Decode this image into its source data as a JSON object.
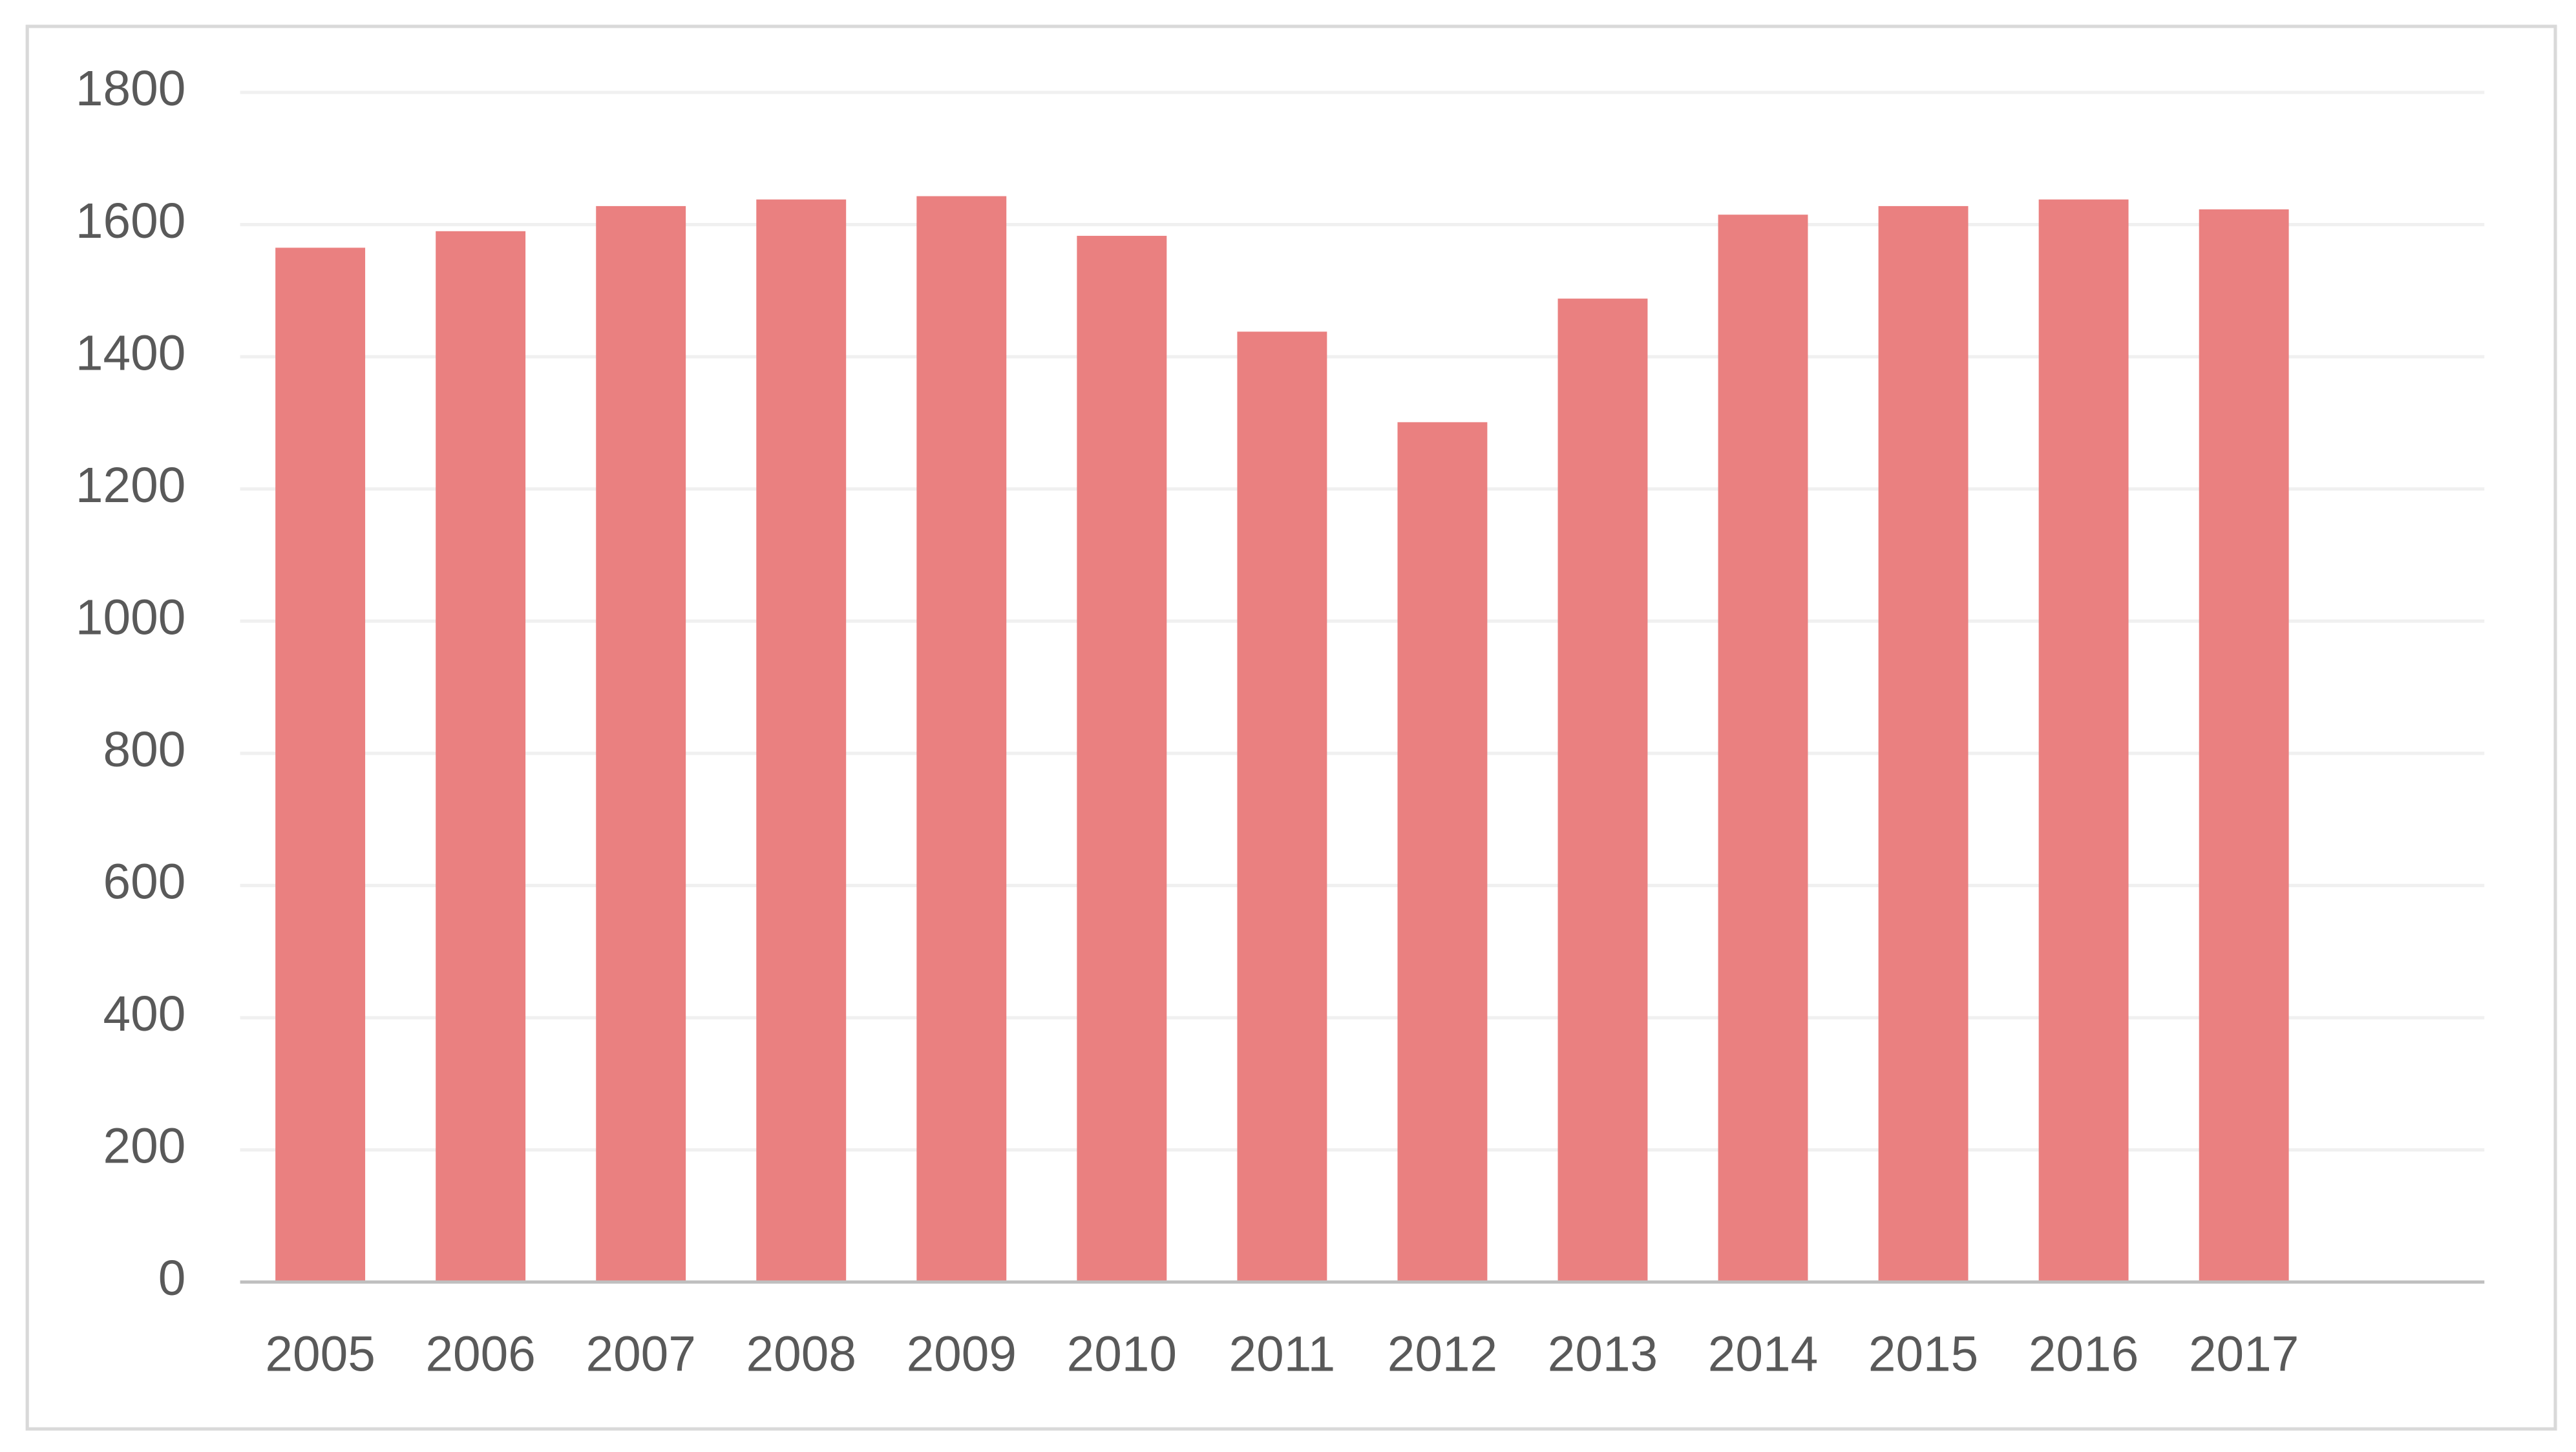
{
  "chart_data": {
    "type": "bar",
    "categories": [
      "2005",
      "2006",
      "2007",
      "2008",
      "2009",
      "2010",
      "2011",
      "2012",
      "2013",
      "2014",
      "2015",
      "2016",
      "2017",
      null
    ],
    "values": [
      1565,
      1590,
      1628,
      1638,
      1643,
      1583,
      1438,
      1301,
      1488,
      1615,
      1628,
      1638,
      1623,
      null
    ],
    "color": "#ea8080",
    "ylim": [
      0,
      1800
    ],
    "yticks": [
      0,
      200,
      400,
      600,
      800,
      1000,
      1200,
      1400,
      1600,
      1800
    ],
    "grid": true
  }
}
